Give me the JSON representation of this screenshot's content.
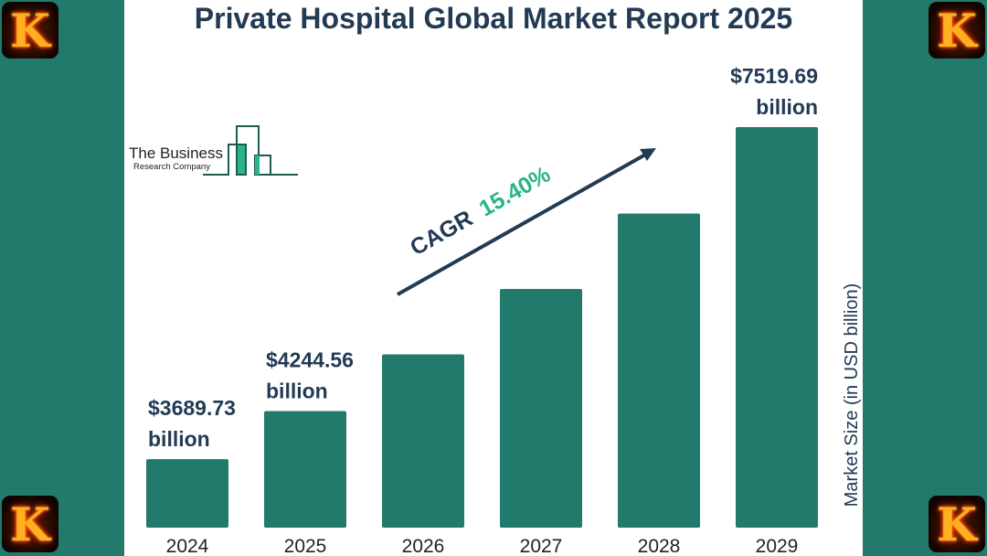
{
  "chart_data": {
    "type": "bar",
    "title": "Private Hospital Global Market Report 2025",
    "categories": [
      "2024",
      "2025",
      "2026",
      "2027",
      "2028",
      "2029"
    ],
    "values": [
      3689.73,
      4244.56,
      4898.2,
      5652.5,
      6523.0,
      7519.69
    ],
    "data_labels": [
      {
        "index": 0,
        "value": "$3689.73",
        "unit": "billion"
      },
      {
        "index": 1,
        "value": "$4244.56",
        "unit": "billion"
      },
      {
        "index": 5,
        "value": "$7519.69",
        "unit": "billion"
      }
    ],
    "xlabel": "",
    "ylabel": "Market Size (in USD billion)",
    "ylim": [
      2900,
      7600
    ],
    "grid": false,
    "annotation": {
      "label": "CAGR",
      "value": "15.40%"
    },
    "colors": {
      "bar": "#217a6b",
      "text": "#233a55",
      "cagr": "#2bb38a"
    }
  },
  "logo": {
    "line1": "The Business",
    "line2": "Research Company"
  },
  "corner_icon_letter": "K"
}
